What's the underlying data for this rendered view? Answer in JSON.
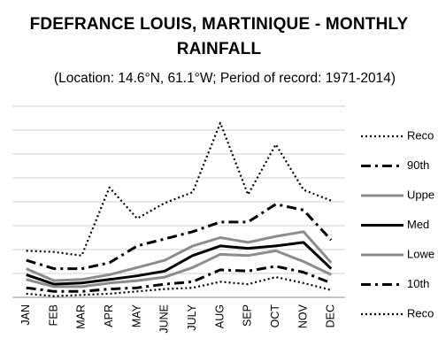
{
  "chart_data": {
    "type": "line",
    "title": "FDEFRANCE LOUIS, MARTINIQUE - MONTHLY\nRAINFALL",
    "subtitle": "(Location: 14.6°N, 61.1°W; Period of record: 1971-2014)",
    "xlabel": "",
    "ylabel": "",
    "categories": [
      "JAN",
      "FEB",
      "MAR",
      "APR",
      "MAY",
      "JUNE",
      "JULY",
      "AUG",
      "SEP",
      "OCT",
      "NOV",
      "DEC"
    ],
    "ylim": [
      0,
      8
    ],
    "grid": true,
    "legend_position": "right",
    "series": [
      {
        "name": "Reco",
        "style": "dotted",
        "color": "#000000",
        "width": 2.2,
        "values": [
          1.95,
          1.9,
          1.75,
          4.6,
          3.3,
          3.95,
          4.4,
          7.3,
          4.3,
          6.4,
          4.5,
          4.05
        ]
      },
      {
        "name": "90th",
        "style": "dashdot",
        "color": "#000000",
        "width": 3,
        "values": [
          1.55,
          1.2,
          1.2,
          1.45,
          2.15,
          2.45,
          2.75,
          3.15,
          3.15,
          3.9,
          3.65,
          2.4
        ]
      },
      {
        "name": "Uppe",
        "style": "solid",
        "color": "#8c8c8c",
        "width": 3,
        "values": [
          1.2,
          0.7,
          0.75,
          0.95,
          1.25,
          1.55,
          2.15,
          2.5,
          2.3,
          2.55,
          2.75,
          1.45
        ]
      },
      {
        "name": "Med",
        "style": "solid",
        "color": "#000000",
        "width": 3,
        "values": [
          0.95,
          0.55,
          0.6,
          0.75,
          0.9,
          1.1,
          1.75,
          2.15,
          2.05,
          2.15,
          2.3,
          1.2
        ]
      },
      {
        "name": "Lowe",
        "style": "solid",
        "color": "#8c8c8c",
        "width": 3,
        "values": [
          0.75,
          0.45,
          0.45,
          0.6,
          0.7,
          0.85,
          1.25,
          1.8,
          1.75,
          1.95,
          1.5,
          0.95
        ]
      },
      {
        "name": "10th",
        "style": "dashdot",
        "color": "#000000",
        "width": 3,
        "values": [
          0.4,
          0.25,
          0.25,
          0.35,
          0.4,
          0.55,
          0.65,
          1.15,
          1.1,
          1.3,
          1.05,
          0.6
        ]
      },
      {
        "name": "Reco",
        "style": "dotted",
        "color": "#000000",
        "width": 2.2,
        "values": [
          0.15,
          0.05,
          0.1,
          0.15,
          0.25,
          0.35,
          0.4,
          0.65,
          0.55,
          0.85,
          0.6,
          0.3
        ]
      }
    ]
  }
}
